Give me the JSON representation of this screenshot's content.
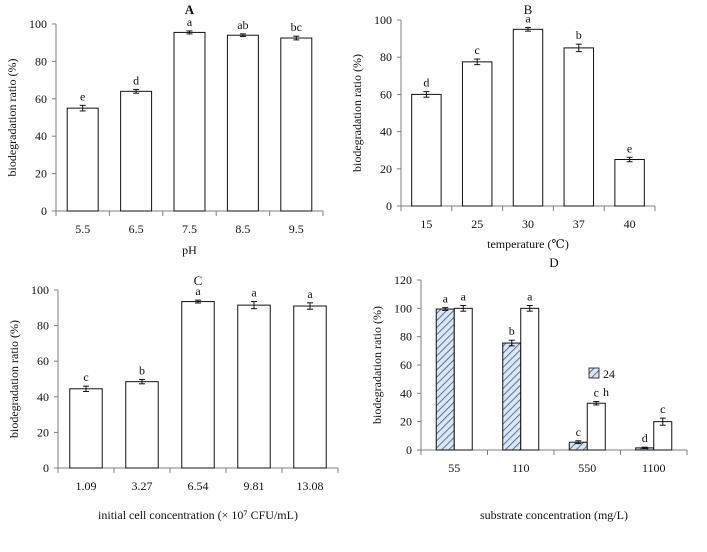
{
  "chart_data": [
    {
      "panel": "A",
      "type": "bar",
      "title": "A",
      "xlabel": "pH",
      "ylabel": "biodegradation ratio (%)",
      "categories": [
        "5.5",
        "6.5",
        "7.5",
        "8.5",
        "9.5"
      ],
      "values": [
        55,
        64,
        95.5,
        94,
        92.5
      ],
      "errors": [
        1.5,
        1,
        0.8,
        0.7,
        1
      ],
      "letters": [
        "e",
        "d",
        "a",
        "ab",
        "bc"
      ],
      "ylim": [
        0,
        100
      ],
      "yticks": [
        0,
        20,
        40,
        60,
        80,
        100
      ]
    },
    {
      "panel": "B",
      "type": "bar",
      "title": "B",
      "xlabel": "temperature (℃)",
      "ylabel": "biodegradation ratio (%)",
      "categories": [
        "15",
        "25",
        "30",
        "37",
        "40"
      ],
      "values": [
        60,
        77.5,
        95,
        85,
        25
      ],
      "errors": [
        1.5,
        1.5,
        1,
        2,
        1.2
      ],
      "letters": [
        "d",
        "c",
        "a",
        "b",
        "e"
      ],
      "ylim": [
        0,
        100
      ],
      "yticks": [
        0,
        20,
        40,
        60,
        80,
        100
      ]
    },
    {
      "panel": "C",
      "type": "bar",
      "title": "C",
      "xlabel": "initial cell concentration (× 10⁷ CFU/mL)",
      "ylabel": "biodegradation ratio (%)",
      "categories": [
        "1.09",
        "3.27",
        "6.54",
        "9.81",
        "13.08"
      ],
      "values": [
        44.5,
        48.5,
        93.5,
        91.5,
        91
      ],
      "errors": [
        1.5,
        1.2,
        0.8,
        2,
        1.8
      ],
      "letters": [
        "c",
        "b",
        "a",
        "a",
        "a"
      ],
      "ylim": [
        0,
        100
      ],
      "yticks": [
        0,
        20,
        40,
        60,
        80,
        100
      ]
    },
    {
      "panel": "D",
      "type": "bar",
      "title": "D",
      "xlabel": "substrate concentration (mg/L)",
      "ylabel": "biodegradation ratio (%)",
      "categories": [
        "55",
        "110",
        "550",
        "1100"
      ],
      "series": [
        {
          "name": "24",
          "fill": "hatched",
          "values": [
            99.5,
            75.5,
            5.5,
            1.5
          ],
          "errors": [
            1,
            2,
            1,
            0.5
          ],
          "letters": [
            "a",
            "b",
            "c",
            "d"
          ]
        },
        {
          "name": "",
          "fill": "white",
          "values": [
            100,
            100,
            33,
            20
          ],
          "errors": [
            2,
            2,
            1.2,
            2.5
          ],
          "letters": [
            "a",
            "a",
            "c",
            "c"
          ]
        }
      ],
      "legend_extra": "h",
      "legend_position": "center-right",
      "ylim": [
        0,
        120
      ],
      "yticks": [
        0,
        20,
        40,
        60,
        80,
        100,
        120
      ]
    }
  ],
  "colors": {
    "axis": "#7f7f7f",
    "bar_stroke": "#111111",
    "bar_fill": "#ffffff",
    "hatch_fill": "#dce6f2",
    "hatch_line": "#2e5a8c"
  }
}
